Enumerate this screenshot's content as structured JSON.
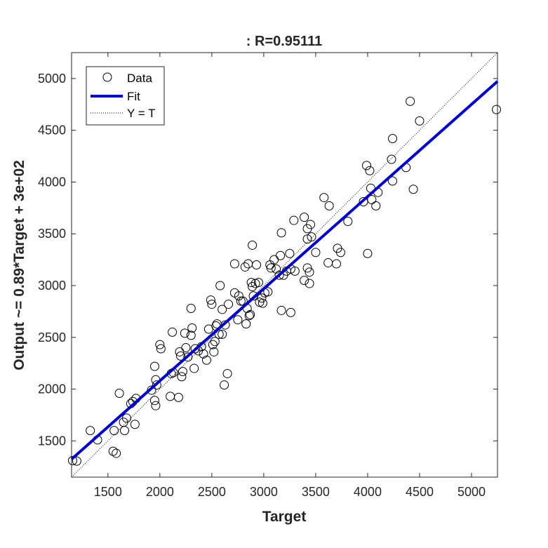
{
  "chart_data": {
    "type": "scatter",
    "title": ": R=0.95111",
    "xlabel": "Target",
    "ylabel": "Output ~= 0.89*Target + 3e+02",
    "xlim": [
      1150,
      5250
    ],
    "ylim": [
      1150,
      5250
    ],
    "xticks": [
      1500,
      2000,
      2500,
      3000,
      3500,
      4000,
      4500,
      5000
    ],
    "yticks": [
      1500,
      2000,
      2500,
      3000,
      3500,
      4000,
      4500,
      5000
    ],
    "grid": false,
    "legend_position": "top-left",
    "legend": [
      "Data",
      "Fit",
      "Y = T"
    ],
    "colors": {
      "fit": "#0000cc",
      "data": "#000000",
      "identity": "#000000"
    },
    "fit": {
      "slope": 0.89,
      "intercept": 300
    },
    "points": [
      [
        1160,
        1310
      ],
      [
        1200,
        1305
      ],
      [
        1330,
        1600
      ],
      [
        1400,
        1510
      ],
      [
        1560,
        1600
      ],
      [
        1550,
        1400
      ],
      [
        1580,
        1380
      ],
      [
        1610,
        1960
      ],
      [
        1650,
        1680
      ],
      [
        1680,
        1720
      ],
      [
        1720,
        1860
      ],
      [
        1740,
        1880
      ],
      [
        1760,
        1660
      ],
      [
        1770,
        1910
      ],
      [
        1660,
        1600
      ],
      [
        1920,
        1990
      ],
      [
        1950,
        1890
      ],
      [
        1950,
        2220
      ],
      [
        1960,
        2090
      ],
      [
        1970,
        2040
      ],
      [
        1960,
        1840
      ],
      [
        2000,
        2430
      ],
      [
        2010,
        2390
      ],
      [
        2100,
        1930
      ],
      [
        2110,
        2150
      ],
      [
        2120,
        2550
      ],
      [
        2130,
        2160
      ],
      [
        2180,
        1920
      ],
      [
        2190,
        2360
      ],
      [
        2200,
        2320
      ],
      [
        2210,
        2120
      ],
      [
        2220,
        2170
      ],
      [
        2240,
        2540
      ],
      [
        2250,
        2400
      ],
      [
        2270,
        2310
      ],
      [
        2300,
        2780
      ],
      [
        2300,
        2520
      ],
      [
        2310,
        2590
      ],
      [
        2330,
        2200
      ],
      [
        2340,
        2390
      ],
      [
        2370,
        2370
      ],
      [
        2400,
        2410
      ],
      [
        2420,
        2340
      ],
      [
        2450,
        2280
      ],
      [
        2470,
        2580
      ],
      [
        2490,
        2860
      ],
      [
        2500,
        2820
      ],
      [
        2510,
        2430
      ],
      [
        2520,
        2360
      ],
      [
        2530,
        2460
      ],
      [
        2540,
        2610
      ],
      [
        2550,
        2630
      ],
      [
        2570,
        2530
      ],
      [
        2580,
        3000
      ],
      [
        2600,
        2770
      ],
      [
        2600,
        2530
      ],
      [
        2620,
        2040
      ],
      [
        2630,
        2620
      ],
      [
        2650,
        2150
      ],
      [
        2660,
        2820
      ],
      [
        2720,
        2930
      ],
      [
        2720,
        3210
      ],
      [
        2750,
        2670
      ],
      [
        2760,
        2900
      ],
      [
        2780,
        2850
      ],
      [
        2800,
        2850
      ],
      [
        2820,
        3180
      ],
      [
        2830,
        2630
      ],
      [
        2840,
        2780
      ],
      [
        2850,
        3210
      ],
      [
        2860,
        2710
      ],
      [
        2870,
        2720
      ],
      [
        2880,
        3030
      ],
      [
        2890,
        3390
      ],
      [
        2890,
        2990
      ],
      [
        2900,
        2900
      ],
      [
        2920,
        3020
      ],
      [
        2930,
        3200
      ],
      [
        2950,
        3030
      ],
      [
        2960,
        2840
      ],
      [
        2980,
        2880
      ],
      [
        2990,
        2830
      ],
      [
        3010,
        2930
      ],
      [
        3040,
        2940
      ],
      [
        3060,
        3200
      ],
      [
        3070,
        3170
      ],
      [
        3100,
        3250
      ],
      [
        3120,
        3160
      ],
      [
        3150,
        3100
      ],
      [
        3160,
        3290
      ],
      [
        3170,
        3510
      ],
      [
        3170,
        2760
      ],
      [
        3190,
        3100
      ],
      [
        3220,
        3140
      ],
      [
        3250,
        3310
      ],
      [
        3260,
        3160
      ],
      [
        3260,
        2740
      ],
      [
        3290,
        3630
      ],
      [
        3300,
        3140
      ],
      [
        3390,
        3050
      ],
      [
        3390,
        3660
      ],
      [
        3420,
        3550
      ],
      [
        3420,
        3450
      ],
      [
        3420,
        3170
      ],
      [
        3440,
        3130
      ],
      [
        3440,
        3020
      ],
      [
        3450,
        3590
      ],
      [
        3460,
        3470
      ],
      [
        3500,
        3320
      ],
      [
        3580,
        3850
      ],
      [
        3620,
        3220
      ],
      [
        3630,
        3770
      ],
      [
        3700,
        3210
      ],
      [
        3710,
        3360
      ],
      [
        3740,
        3320
      ],
      [
        3810,
        3620
      ],
      [
        3960,
        3810
      ],
      [
        3990,
        4160
      ],
      [
        4000,
        3310
      ],
      [
        4020,
        4110
      ],
      [
        4030,
        3940
      ],
      [
        4040,
        3830
      ],
      [
        4080,
        3770
      ],
      [
        4100,
        3900
      ],
      [
        4230,
        4220
      ],
      [
        4240,
        4420
      ],
      [
        4240,
        4010
      ],
      [
        4370,
        4140
      ],
      [
        4410,
        4780
      ],
      [
        4440,
        3930
      ],
      [
        4500,
        4590
      ],
      [
        5240,
        4700
      ]
    ]
  }
}
